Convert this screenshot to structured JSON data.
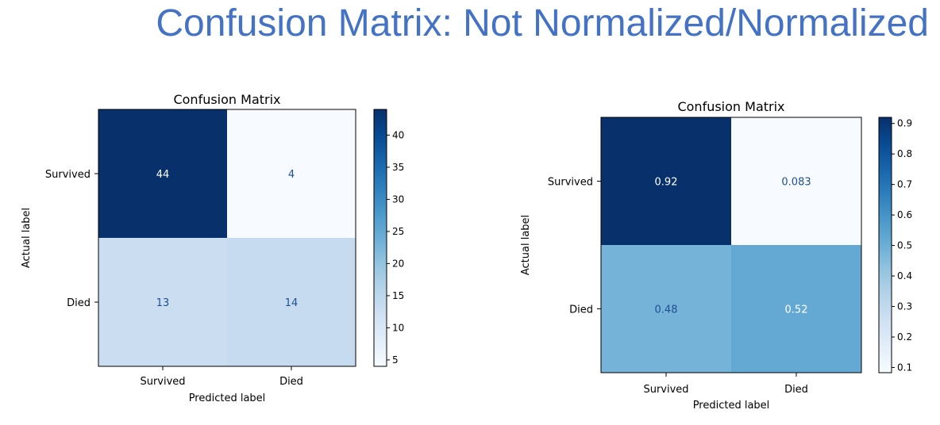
{
  "page_title": "Confusion Matrix: Not Normalized/Normalized",
  "chart_data": [
    {
      "type": "heatmap",
      "title": "Confusion Matrix",
      "xlabel": "Predicted label",
      "ylabel": "Actual label",
      "x_categories": [
        "Survived",
        "Died"
      ],
      "y_categories": [
        "Survived",
        "Died"
      ],
      "values": [
        [
          "44",
          "4"
        ],
        [
          "13",
          "14"
        ]
      ],
      "colormap": "Blues",
      "colorbar": {
        "min": 4,
        "max": 44,
        "ticks": [
          "5",
          "10",
          "15",
          "20",
          "25",
          "30",
          "35",
          "40"
        ]
      },
      "grid": false,
      "text_colors": {
        "dark_cell": "#ffffff",
        "light_cell": "#1f4f8f"
      }
    },
    {
      "type": "heatmap",
      "title": "Confusion Matrix",
      "xlabel": "Predicted label",
      "ylabel": "Actual label",
      "x_categories": [
        "Survived",
        "Died"
      ],
      "y_categories": [
        "Survived",
        "Died"
      ],
      "values": [
        [
          "0.92",
          "0.083"
        ],
        [
          "0.48",
          "0.52"
        ]
      ],
      "colormap": "Blues",
      "colorbar": {
        "min": 0.083,
        "max": 0.92,
        "ticks": [
          "0.1",
          "0.2",
          "0.3",
          "0.4",
          "0.5",
          "0.6",
          "0.7",
          "0.8",
          "0.9"
        ]
      },
      "grid": false,
      "text_colors": {
        "dark_cell": "#ffffff",
        "light_cell": "#1f4f8f"
      }
    }
  ]
}
